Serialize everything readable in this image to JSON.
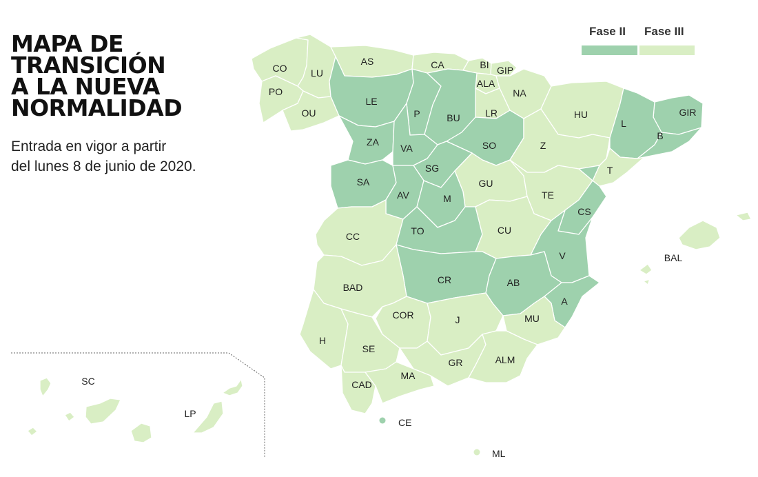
{
  "title_lines": [
    "MAPA DE",
    "TRANSICIÓN",
    "A LA NUEVA",
    "NORMALIDAD"
  ],
  "subtitle_lines": [
    "Entrada en vigor a partir",
    "del lunes 8 de junio de 2020."
  ],
  "legend": {
    "phase2_label": "Fase II",
    "phase3_label": "Fase III",
    "phase2_color": "#9ed1ad",
    "phase3_color": "#d9eec4"
  },
  "regions": [
    {
      "code": "CO",
      "phase": 3
    },
    {
      "code": "LU",
      "phase": 3
    },
    {
      "code": "AS",
      "phase": 3
    },
    {
      "code": "CA",
      "phase": 3
    },
    {
      "code": "BI",
      "phase": 3
    },
    {
      "code": "GIP",
      "phase": 3
    },
    {
      "code": "ALA",
      "phase": 3
    },
    {
      "code": "NA",
      "phase": 3
    },
    {
      "code": "PO",
      "phase": 3
    },
    {
      "code": "OU",
      "phase": 3
    },
    {
      "code": "LE",
      "phase": 2
    },
    {
      "code": "P",
      "phase": 2
    },
    {
      "code": "BU",
      "phase": 2
    },
    {
      "code": "LR",
      "phase": 3
    },
    {
      "code": "HU",
      "phase": 3
    },
    {
      "code": "GIR",
      "phase": 2
    },
    {
      "code": "L",
      "phase": 2
    },
    {
      "code": "B",
      "phase": 2
    },
    {
      "code": "ZA",
      "phase": 2
    },
    {
      "code": "VA",
      "phase": 2
    },
    {
      "code": "SO",
      "phase": 2
    },
    {
      "code": "Z",
      "phase": 3
    },
    {
      "code": "T",
      "phase": 3
    },
    {
      "code": "SG",
      "phase": 2
    },
    {
      "code": "SA",
      "phase": 2
    },
    {
      "code": "AV",
      "phase": 2
    },
    {
      "code": "GU",
      "phase": 3
    },
    {
      "code": "TE",
      "phase": 3
    },
    {
      "code": "M",
      "phase": 2
    },
    {
      "code": "CS",
      "phase": 2
    },
    {
      "code": "CC",
      "phase": 3
    },
    {
      "code": "TO",
      "phase": 2
    },
    {
      "code": "CU",
      "phase": 3
    },
    {
      "code": "V",
      "phase": 2
    },
    {
      "code": "BAL",
      "phase": 3
    },
    {
      "code": "CR",
      "phase": 2
    },
    {
      "code": "AB",
      "phase": 2
    },
    {
      "code": "BAD",
      "phase": 3
    },
    {
      "code": "A",
      "phase": 2
    },
    {
      "code": "COR",
      "phase": 3
    },
    {
      "code": "J",
      "phase": 3
    },
    {
      "code": "MU",
      "phase": 3
    },
    {
      "code": "H",
      "phase": 3
    },
    {
      "code": "SE",
      "phase": 3
    },
    {
      "code": "GR",
      "phase": 3
    },
    {
      "code": "ALM",
      "phase": 3
    },
    {
      "code": "CAD",
      "phase": 3
    },
    {
      "code": "MA",
      "phase": 3
    },
    {
      "code": "CE",
      "phase": 2
    },
    {
      "code": "ML",
      "phase": 3
    },
    {
      "code": "SC",
      "phase": 3
    },
    {
      "code": "LP",
      "phase": 3
    }
  ]
}
